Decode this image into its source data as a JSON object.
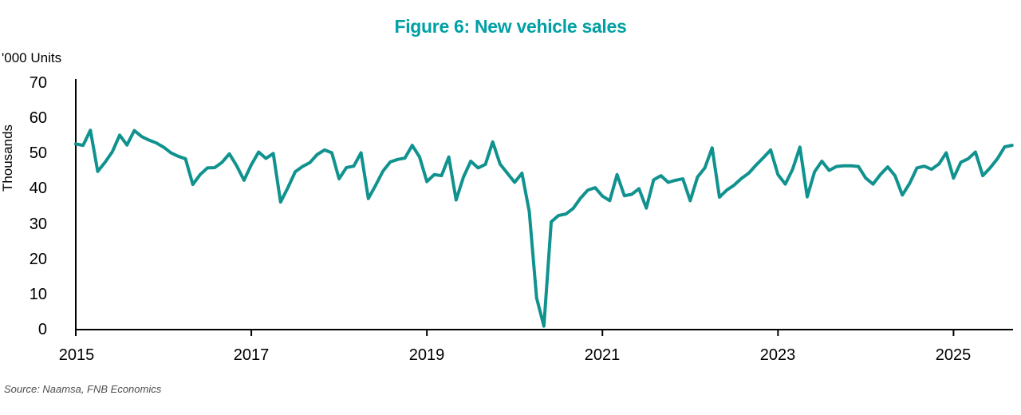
{
  "chart_data": {
    "type": "line",
    "title": "Figure 6: New vehicle sales",
    "units_label": "'000 Units",
    "ylabel": "Thousands",
    "source": "Source: Naamsa, FNB Economics",
    "y_ticks": [
      0,
      10,
      20,
      30,
      40,
      50,
      60,
      70
    ],
    "ylim": [
      0,
      70
    ],
    "x_tick_labels": [
      "2015",
      "2017",
      "2019",
      "2021",
      "2023",
      "2025"
    ],
    "x_tick_months": [
      0,
      24,
      48,
      72,
      96,
      120
    ],
    "grid": false,
    "legend": "none",
    "colors": {
      "line": "#10928F",
      "title": "#00A0A5",
      "axis": "#000000",
      "source_text": "#4d4d4d"
    },
    "series": [
      {
        "name": "New vehicle sales ('000 units, monthly)",
        "start": "Jan 2015",
        "end": "Sep 2025",
        "frequency": "monthly",
        "values": [
          52.7,
          52.3,
          56.6,
          44.9,
          47.5,
          50.5,
          55.2,
          52.4,
          56.5,
          54.8,
          53.8,
          53.0,
          51.8,
          50.2,
          49.2,
          48.5,
          41.2,
          44.0,
          45.9,
          46.0,
          47.5,
          49.9,
          46.5,
          42.4,
          46.8,
          50.4,
          48.6,
          50.0,
          36.2,
          40.3,
          44.8,
          46.3,
          47.4,
          49.7,
          51.0,
          50.2,
          42.8,
          46.0,
          46.4,
          50.2,
          37.2,
          41.0,
          45.0,
          47.6,
          48.3,
          48.7,
          52.3,
          49.0,
          42.0,
          44.0,
          43.7,
          49.0,
          36.8,
          43.3,
          47.8,
          45.9,
          46.9,
          53.3,
          47.0,
          44.4,
          41.8,
          44.4,
          33.5,
          9.0,
          1.0,
          30.6,
          32.4,
          32.8,
          34.4,
          37.3,
          39.6,
          40.3,
          37.9,
          36.6,
          44.0,
          38.0,
          38.4,
          40.0,
          34.5,
          42.5,
          43.7,
          41.8,
          42.4,
          42.8,
          36.6,
          43.3,
          45.9,
          51.6,
          37.6,
          39.6,
          41.0,
          42.9,
          44.4,
          46.7,
          48.8,
          51.0,
          44.0,
          41.3,
          45.5,
          51.8,
          37.7,
          44.8,
          47.8,
          45.2,
          46.3,
          46.5,
          46.5,
          46.3,
          43.0,
          41.3,
          44.0,
          46.2,
          43.7,
          38.2,
          41.5,
          45.9,
          46.4,
          45.5,
          47.0,
          50.2,
          43.0,
          47.5,
          48.5,
          50.4,
          43.7,
          45.9,
          48.5,
          51.9,
          52.3
        ]
      }
    ]
  }
}
